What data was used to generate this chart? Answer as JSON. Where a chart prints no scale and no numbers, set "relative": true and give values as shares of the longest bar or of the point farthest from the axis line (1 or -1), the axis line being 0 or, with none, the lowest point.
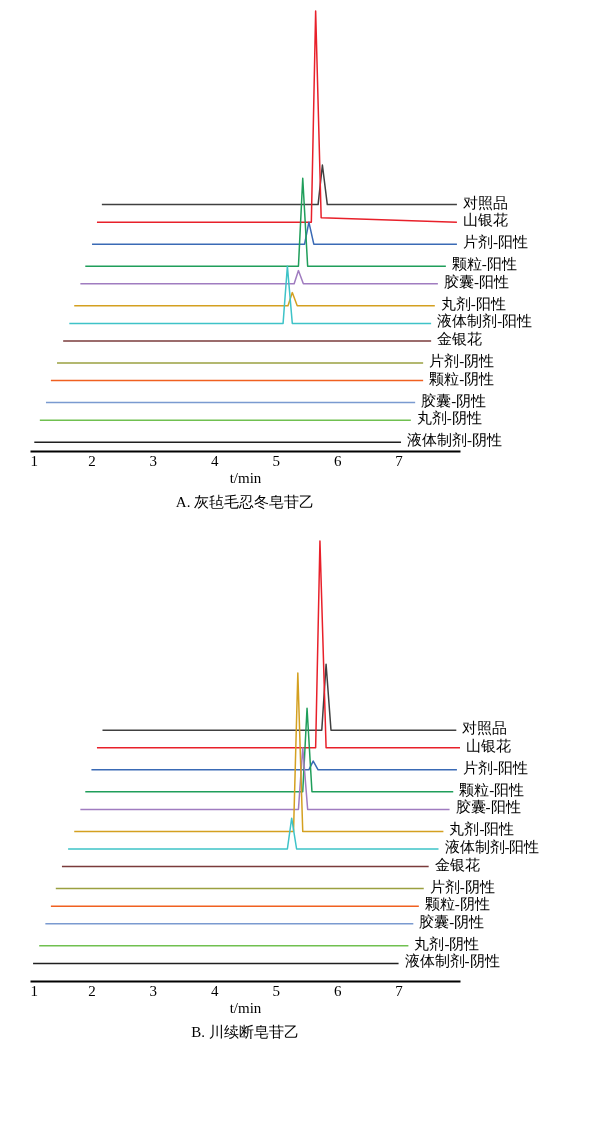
{
  "chart_data": [
    {
      "type": "line",
      "title": "A. 灰毡毛忍冬皂苷乙",
      "xlabel": "t/min",
      "relative": true,
      "xlim": [
        1,
        8
      ],
      "xticks": [
        1,
        2,
        3,
        4,
        5,
        6,
        7
      ],
      "grid": false,
      "legend": false,
      "series": [
        {
          "name": "对照品",
          "color": "#404040",
          "x": [
            2.17,
            5.69,
            5.76,
            5.84,
            7.95
          ],
          "values": [
            0.56,
            0.56,
            0.65,
            0.56,
            0.56
          ]
        },
        {
          "name": "山银花",
          "color": "#e8202a",
          "x": [
            2.09,
            5.58,
            5.65,
            5.74,
            7.95
          ],
          "values": [
            0.52,
            0.52,
            1.0,
            0.53,
            0.52
          ]
        },
        {
          "name": "片剂-阳性",
          "color": "#3a6ab5",
          "x": [
            2.01,
            5.47,
            5.54,
            5.62,
            7.95
          ],
          "values": [
            0.47,
            0.47,
            0.52,
            0.47,
            0.47
          ]
        },
        {
          "name": "颗粒-阳性",
          "color": "#1f9e5a",
          "x": [
            1.9,
            5.37,
            5.44,
            5.52,
            7.77
          ],
          "values": [
            0.42,
            0.42,
            0.62,
            0.42,
            0.42
          ]
        },
        {
          "name": "胶囊-阳性",
          "color": "#a07cc0",
          "x": [
            1.82,
            5.3,
            5.37,
            5.45,
            7.64
          ],
          "values": [
            0.38,
            0.38,
            0.41,
            0.38,
            0.38
          ]
        },
        {
          "name": "丸剂-阳性",
          "color": "#d4a020",
          "x": [
            1.72,
            5.2,
            5.27,
            5.35,
            7.59
          ],
          "values": [
            0.33,
            0.33,
            0.36,
            0.33,
            0.33
          ]
        },
        {
          "name": "液体制剂-阳性",
          "color": "#3ec3c8",
          "x": [
            1.64,
            5.12,
            5.19,
            5.27,
            7.53
          ],
          "values": [
            0.29,
            0.29,
            0.42,
            0.29,
            0.29
          ]
        },
        {
          "name": "金银花",
          "color": "#7a3b3b",
          "x": [
            1.54,
            7.53
          ],
          "values": [
            0.25,
            0.25
          ]
        },
        {
          "name": "片剂-阴性",
          "color": "#9aa040",
          "x": [
            1.44,
            7.4
          ],
          "values": [
            0.2,
            0.2
          ]
        },
        {
          "name": "颗粒-阴性",
          "color": "#f06020",
          "x": [
            1.34,
            7.4
          ],
          "values": [
            0.16,
            0.16
          ]
        },
        {
          "name": "胶囊-阴性",
          "color": "#7a9ad0",
          "x": [
            1.26,
            7.27
          ],
          "values": [
            0.11,
            0.11
          ]
        },
        {
          "name": "丸剂-阴性",
          "color": "#70c050",
          "x": [
            1.16,
            7.2
          ],
          "values": [
            0.07,
            0.07
          ]
        },
        {
          "name": "液体制剂-阴性",
          "color": "#202020",
          "x": [
            1.07,
            7.04
          ],
          "values": [
            0.02,
            0.02
          ]
        }
      ]
    },
    {
      "type": "line",
      "title": "B. 川续断皂苷乙",
      "xlabel": "t/min",
      "relative": true,
      "xlim": [
        1,
        8
      ],
      "xticks": [
        1,
        2,
        3,
        4,
        5,
        6,
        7
      ],
      "grid": false,
      "legend": false,
      "series": [
        {
          "name": "对照品",
          "color": "#404040",
          "x": [
            2.18,
            5.75,
            5.82,
            5.9,
            7.94
          ],
          "values": [
            0.57,
            0.57,
            0.72,
            0.57,
            0.57
          ]
        },
        {
          "name": "山银花",
          "color": "#e8202a",
          "x": [
            2.09,
            5.65,
            5.72,
            5.82,
            8.0
          ],
          "values": [
            0.53,
            0.53,
            1.0,
            0.53,
            0.53
          ]
        },
        {
          "name": "片剂-阳性",
          "color": "#3a6ab5",
          "x": [
            2.0,
            5.54,
            5.61,
            5.69,
            7.95
          ],
          "values": [
            0.48,
            0.48,
            0.5,
            0.48,
            0.48
          ]
        },
        {
          "name": "颗粒-阳性",
          "color": "#1f9e5a",
          "x": [
            1.9,
            5.44,
            5.51,
            5.59,
            7.89
          ],
          "values": [
            0.43,
            0.43,
            0.62,
            0.43,
            0.43
          ]
        },
        {
          "name": "胶囊-阳性",
          "color": "#a07cc0",
          "x": [
            1.82,
            5.37,
            5.44,
            5.52,
            7.83
          ],
          "values": [
            0.39,
            0.39,
            0.53,
            0.39,
            0.39
          ]
        },
        {
          "name": "丸剂-阳性",
          "color": "#d4a020",
          "x": [
            1.72,
            5.29,
            5.36,
            5.44,
            7.73
          ],
          "values": [
            0.34,
            0.34,
            0.7,
            0.34,
            0.34
          ]
        },
        {
          "name": "液体制剂-阳性",
          "color": "#3ec3c8",
          "x": [
            1.62,
            5.19,
            5.26,
            5.34,
            7.65
          ],
          "values": [
            0.3,
            0.3,
            0.37,
            0.3,
            0.3
          ]
        },
        {
          "name": "金银花",
          "color": "#7a3b3b",
          "x": [
            1.52,
            7.49
          ],
          "values": [
            0.26,
            0.26
          ]
        },
        {
          "name": "片剂-阴性",
          "color": "#9aa040",
          "x": [
            1.42,
            7.41
          ],
          "values": [
            0.21,
            0.21
          ]
        },
        {
          "name": "颗粒-阴性",
          "color": "#f06020",
          "x": [
            1.34,
            7.33
          ],
          "values": [
            0.17,
            0.17
          ]
        },
        {
          "name": "胶囊-阴性",
          "color": "#7a9ad0",
          "x": [
            1.25,
            7.24
          ],
          "values": [
            0.13,
            0.13
          ]
        },
        {
          "name": "丸剂-阴性",
          "color": "#70c050",
          "x": [
            1.15,
            7.16
          ],
          "values": [
            0.08,
            0.08
          ]
        },
        {
          "name": "液体制剂-阴性",
          "color": "#202020",
          "x": [
            1.05,
            7.0
          ],
          "values": [
            0.04,
            0.04
          ]
        }
      ]
    }
  ]
}
